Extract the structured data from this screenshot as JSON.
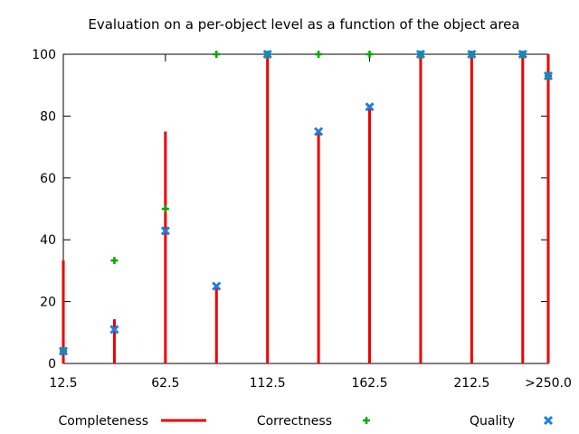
{
  "chart_data": {
    "type": "scatter",
    "title": "Evaluation on a per-object level as a function of the object area",
    "xlabel": "",
    "ylabel": "",
    "x_ticks": [
      "12.5",
      "62.5",
      "112.5",
      "162.5",
      "212.5",
      ">250.0"
    ],
    "x": [
      12.5,
      37.5,
      62.5,
      87.5,
      112.5,
      137.5,
      162.5,
      187.5,
      212.5,
      237.5,
      250.0
    ],
    "xlim": [
      12.5,
      250.0
    ],
    "ylim": [
      0,
      100
    ],
    "y_ticks": [
      0,
      20,
      40,
      60,
      80,
      100
    ],
    "grid": false,
    "legend_position": "bottom",
    "series": [
      {
        "name": "Completeness",
        "style": "impulses",
        "color": "#ee0000",
        "values": [
          33.3,
          14.3,
          75,
          25,
          100,
          75,
          83.3,
          100,
          100,
          100,
          100
        ]
      },
      {
        "name": "Correctness",
        "style": "points-plus",
        "color": "#00aa00",
        "values": [
          4,
          33.3,
          50,
          100,
          100,
          100,
          100,
          100,
          100,
          100,
          93
        ]
      },
      {
        "name": "Quality",
        "style": "points-cross",
        "color": "#1a7fe0",
        "values": [
          4,
          11,
          42.9,
          25,
          100,
          75,
          83,
          100,
          100,
          100,
          93
        ]
      }
    ]
  }
}
